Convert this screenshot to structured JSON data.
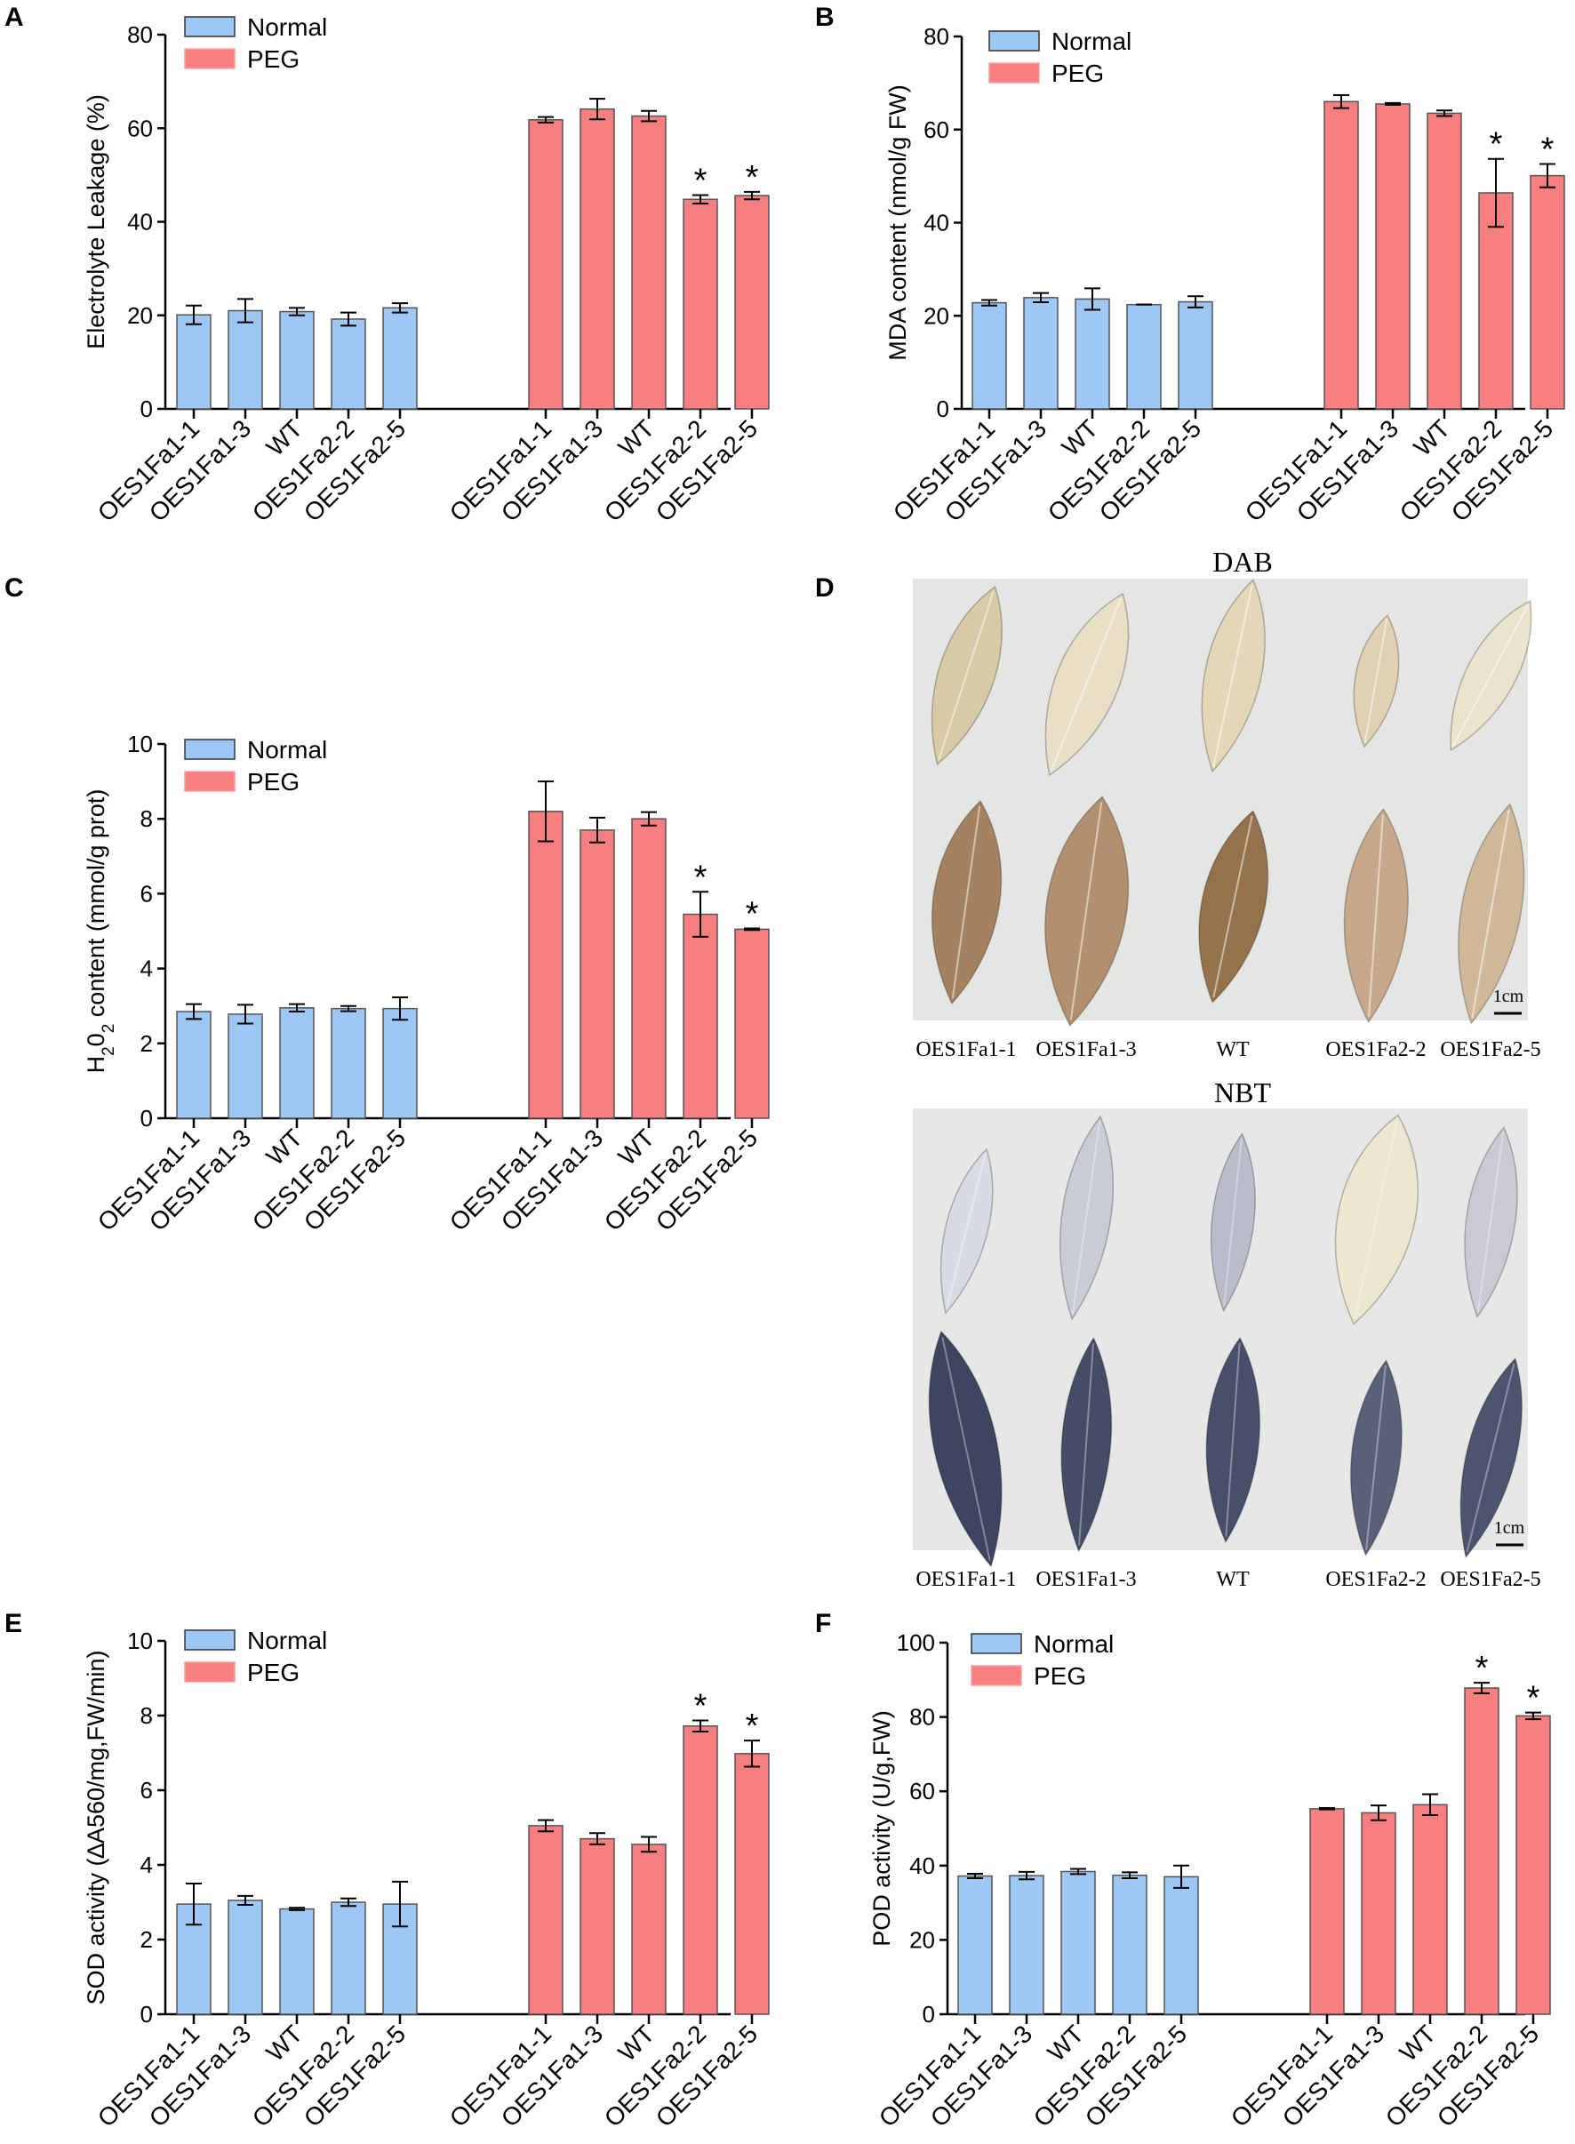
{
  "colors": {
    "normal": "#9ec7f3",
    "peg": "#f87f7f",
    "axis": "#000000",
    "barEdge": "#555555",
    "photoBg": "#e4e6e3"
  },
  "legend": {
    "normal": "Normal",
    "peg": "PEG"
  },
  "categories": [
    "OES1Fa1-1",
    "OES1Fa1-3",
    "WT",
    "OES1Fa2-2",
    "OES1Fa2-5"
  ],
  "star": "*",
  "chart_data": [
    {
      "panel": "A",
      "type": "bar",
      "ylabel": "Electrolyte Leakage (%)",
      "ylim": [
        0,
        80
      ],
      "yticks": [
        0,
        20,
        40,
        60,
        80
      ],
      "categories": [
        "OES1Fa1-1",
        "OES1Fa1-3",
        "WT",
        "OES1Fa2-2",
        "OES1Fa2-5"
      ],
      "series": [
        {
          "name": "Normal",
          "values": [
            20.1,
            21.0,
            20.8,
            19.2,
            21.6
          ],
          "errors": [
            2.0,
            2.5,
            0.8,
            1.4,
            1.0
          ],
          "stars": [
            false,
            false,
            false,
            false,
            false
          ]
        },
        {
          "name": "PEG",
          "values": [
            61.8,
            64.1,
            62.6,
            44.8,
            45.6
          ],
          "errors": [
            0.6,
            2.2,
            1.1,
            0.9,
            0.8
          ],
          "stars": [
            false,
            false,
            false,
            true,
            true
          ]
        }
      ]
    },
    {
      "panel": "B",
      "type": "bar",
      "ylabel": "MDA content (nmol/g FW)",
      "ylim": [
        0,
        80
      ],
      "yticks": [
        0,
        20,
        40,
        60,
        80
      ],
      "categories": [
        "OES1Fa1-1",
        "OES1Fa1-3",
        "WT",
        "OES1Fa2-2",
        "OES1Fa2-5"
      ],
      "series": [
        {
          "name": "Normal",
          "values": [
            22.8,
            23.9,
            23.6,
            22.4,
            23.0
          ],
          "errors": [
            0.6,
            1.0,
            2.3,
            0.0,
            1.2
          ],
          "stars": [
            false,
            false,
            false,
            false,
            false
          ]
        },
        {
          "name": "PEG",
          "values": [
            66.0,
            65.5,
            63.5,
            46.4,
            50.1
          ],
          "errors": [
            1.4,
            0.2,
            0.6,
            7.3,
            2.5
          ],
          "stars": [
            false,
            false,
            false,
            true,
            true
          ]
        }
      ]
    },
    {
      "panel": "C",
      "type": "bar",
      "ylabel_parts": [
        "H",
        "2",
        "0",
        "2",
        " content (mmol/g prot)"
      ],
      "ylim": [
        0,
        10
      ],
      "yticks": [
        0,
        2,
        4,
        6,
        8,
        10
      ],
      "categories": [
        "OES1Fa1-1",
        "OES1Fa1-3",
        "WT",
        "OES1Fa2-2",
        "OES1Fa2-5"
      ],
      "series": [
        {
          "name": "Normal",
          "values": [
            2.85,
            2.78,
            2.95,
            2.93,
            2.93
          ],
          "errors": [
            0.2,
            0.25,
            0.1,
            0.07,
            0.3
          ],
          "stars": [
            false,
            false,
            false,
            false,
            false
          ]
        },
        {
          "name": "PEG",
          "values": [
            8.2,
            7.7,
            8.0,
            5.45,
            5.05
          ],
          "errors": [
            0.8,
            0.33,
            0.18,
            0.6,
            0.02
          ],
          "stars": [
            false,
            false,
            false,
            true,
            true
          ]
        }
      ]
    },
    {
      "panel": "E",
      "type": "bar",
      "ylabel": "SOD activity (∆A560/mg,FW/min)",
      "ylim": [
        0,
        10
      ],
      "yticks": [
        0,
        2,
        4,
        6,
        8,
        10
      ],
      "categories": [
        "OES1Fa1-1",
        "OES1Fa1-3",
        "WT",
        "OES1Fa2-2",
        "OES1Fa2-5"
      ],
      "series": [
        {
          "name": "Normal",
          "values": [
            2.95,
            3.05,
            2.82,
            3.0,
            2.95
          ],
          "errors": [
            0.55,
            0.12,
            0.03,
            0.1,
            0.6
          ],
          "stars": [
            false,
            false,
            false,
            false,
            false
          ]
        },
        {
          "name": "PEG",
          "values": [
            5.05,
            4.7,
            4.55,
            7.72,
            6.98
          ],
          "errors": [
            0.15,
            0.15,
            0.2,
            0.15,
            0.35
          ],
          "stars": [
            false,
            false,
            false,
            true,
            true
          ]
        }
      ]
    },
    {
      "panel": "F",
      "type": "bar",
      "ylabel": "POD activity (U/g,FW)",
      "ylim": [
        0,
        100
      ],
      "yticks": [
        0,
        20,
        40,
        60,
        80,
        100
      ],
      "categories": [
        "OES1Fa1-1",
        "OES1Fa1-3",
        "WT",
        "OES1Fa2-2",
        "OES1Fa2-5"
      ],
      "series": [
        {
          "name": "Normal",
          "values": [
            37.2,
            37.3,
            38.4,
            37.4,
            37.0
          ],
          "errors": [
            0.6,
            1.0,
            0.7,
            0.8,
            3.0
          ],
          "stars": [
            false,
            false,
            false,
            false,
            false
          ]
        },
        {
          "name": "PEG",
          "values": [
            55.3,
            54.2,
            56.4,
            87.8,
            80.3
          ],
          "errors": [
            0.2,
            2.0,
            2.8,
            1.4,
            0.9
          ],
          "stars": [
            false,
            false,
            false,
            true,
            true
          ]
        }
      ]
    }
  ],
  "photos": {
    "panel": "D",
    "scale_label": "1cm",
    "dab": {
      "title": "DAB",
      "labels": [
        "OES1Fa1-1",
        "OES1Fa1-3",
        "WT",
        "OES1Fa2-2",
        "OES1Fa2-5"
      ]
    },
    "nbt": {
      "title": "NBT",
      "labels": [
        "OES1Fa1-1",
        "OES1Fa1-3",
        "WT",
        "OES1Fa2-2",
        "OES1Fa2-5"
      ]
    }
  }
}
